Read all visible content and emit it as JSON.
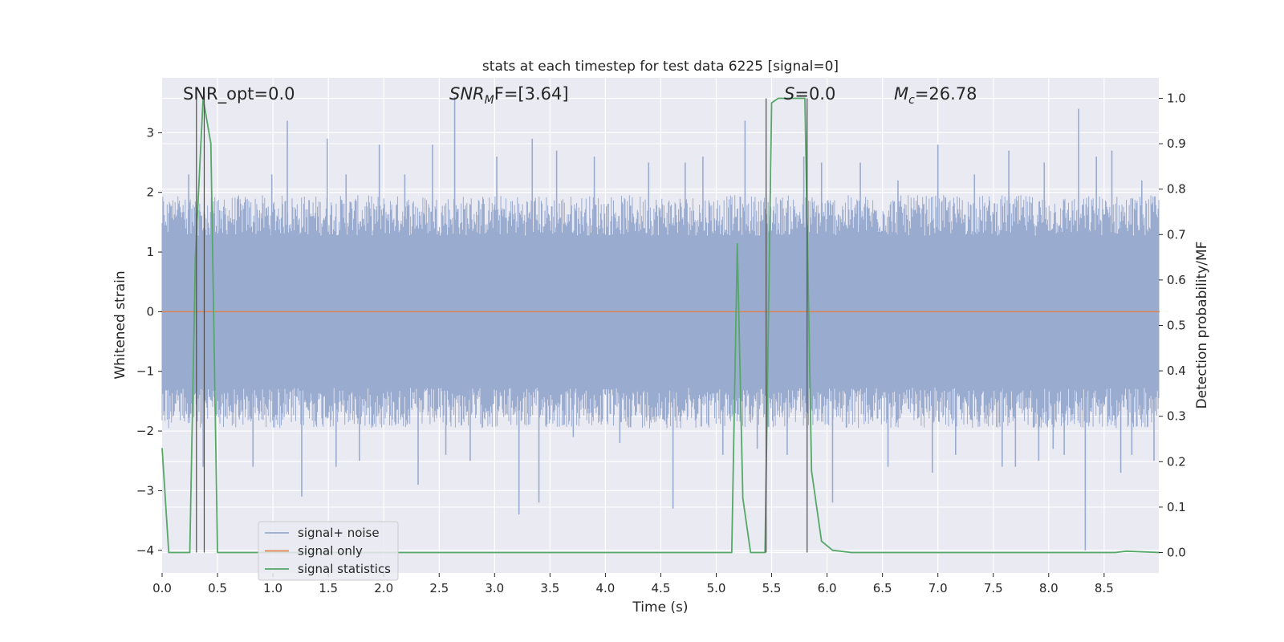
{
  "chart_data": {
    "type": "line",
    "title": "stats at each timestep for test data 6225 [signal=0]",
    "xlabel": "Time (s)",
    "ylabel_left": "Whitened strain",
    "ylabel_right": "Detection probability/MF",
    "xlim": [
      0.0,
      9.0
    ],
    "ylim_left": [
      -4.38,
      3.92
    ],
    "ylim_right": [
      -0.045,
      1.045
    ],
    "x_ticks": [
      0.0,
      0.5,
      1.0,
      1.5,
      2.0,
      2.5,
      3.0,
      3.5,
      4.0,
      4.5,
      5.0,
      5.5,
      6.0,
      6.5,
      7.0,
      7.5,
      8.0,
      8.5
    ],
    "x_tick_labels": [
      "0.0",
      "0.5",
      "1.0",
      "1.5",
      "2.0",
      "2.5",
      "3.0",
      "3.5",
      "4.0",
      "4.5",
      "5.0",
      "5.5",
      "6.0",
      "6.5",
      "7.0",
      "7.5",
      "8.0",
      "8.5"
    ],
    "y_left_ticks": [
      -4,
      -3,
      -2,
      -1,
      0,
      1,
      2,
      3
    ],
    "y_left_tick_labels": [
      "−4",
      "−3",
      "−2",
      "−1",
      "0",
      "1",
      "2",
      "3"
    ],
    "y_right_ticks": [
      0.0,
      0.1,
      0.2,
      0.3,
      0.4,
      0.5,
      0.6,
      0.7,
      0.8,
      0.9,
      1.0
    ],
    "y_right_tick_labels": [
      "0.0",
      "0.1",
      "0.2",
      "0.3",
      "0.4",
      "0.5",
      "0.6",
      "0.7",
      "0.8",
      "0.9",
      "1.0"
    ],
    "grid": true,
    "legend_position": "lower-left",
    "annotations": {
      "snr_opt": "SNR_opt=0.0",
      "snr_mf_main": "SNR",
      "snr_mf_sub": "M",
      "snr_mf_rest": "F=[3.64]",
      "s_main": "S",
      "s_rest": "=0.0",
      "mc_main": "M",
      "mc_sub": "c",
      "mc_rest": "=26.78"
    },
    "vertical_markers_x": [
      0.31,
      0.38,
      5.45,
      5.82
    ],
    "series": [
      {
        "name": "signal+ noise",
        "color": "#9aabd0",
        "axis": "left",
        "kind": "noise",
        "typical_range": [
          -1.7,
          1.7
        ],
        "peak_values": [
          [
            0.24,
            2.3
          ],
          [
            0.37,
            -2.6
          ],
          [
            0.52,
            1.7
          ],
          [
            0.82,
            -2.6
          ],
          [
            0.99,
            2.3
          ],
          [
            1.13,
            3.2
          ],
          [
            1.26,
            -3.1
          ],
          [
            1.49,
            2.9
          ],
          [
            1.57,
            -2.6
          ],
          [
            1.66,
            2.3
          ],
          [
            1.78,
            -2.5
          ],
          [
            1.96,
            2.8
          ],
          [
            2.19,
            2.3
          ],
          [
            2.31,
            -2.9
          ],
          [
            2.44,
            2.8
          ],
          [
            2.56,
            -2.4
          ],
          [
            2.64,
            3.6
          ],
          [
            2.78,
            -2.5
          ],
          [
            3.02,
            2.6
          ],
          [
            3.22,
            -3.4
          ],
          [
            3.34,
            2.9
          ],
          [
            3.4,
            -3.2
          ],
          [
            3.56,
            2.7
          ],
          [
            3.71,
            -2.1
          ],
          [
            3.9,
            2.6
          ],
          [
            4.13,
            -2.2
          ],
          [
            4.39,
            2.5
          ],
          [
            4.61,
            -3.3
          ],
          [
            4.72,
            2.5
          ],
          [
            4.88,
            2.6
          ],
          [
            5.06,
            -2.4
          ],
          [
            5.26,
            3.2
          ],
          [
            5.37,
            -2.3
          ],
          [
            5.64,
            -2.4
          ],
          [
            5.79,
            2.6
          ],
          [
            5.95,
            2.5
          ],
          [
            6.05,
            -3.2
          ],
          [
            6.3,
            2.5
          ],
          [
            6.55,
            -2.6
          ],
          [
            6.64,
            2.2
          ],
          [
            6.95,
            -2.7
          ],
          [
            7.0,
            2.8
          ],
          [
            7.16,
            -2.4
          ],
          [
            7.33,
            2.3
          ],
          [
            7.58,
            -2.6
          ],
          [
            7.64,
            2.7
          ],
          [
            7.7,
            -2.6
          ],
          [
            7.91,
            -2.5
          ],
          [
            7.96,
            2.5
          ],
          [
            8.04,
            -2.3
          ],
          [
            8.14,
            -2.4
          ],
          [
            8.23,
            -1.8
          ],
          [
            8.27,
            3.4
          ],
          [
            8.33,
            -4.0
          ],
          [
            8.43,
            2.6
          ],
          [
            8.57,
            2.7
          ],
          [
            8.65,
            -2.7
          ],
          [
            8.75,
            -2.4
          ],
          [
            8.84,
            2.2
          ],
          [
            8.95,
            -2.5
          ]
        ]
      },
      {
        "name": "signal only",
        "color": "#dd8452",
        "axis": "left",
        "x": [
          0.0,
          9.0
        ],
        "y": [
          0.0,
          0.0
        ]
      },
      {
        "name": "signal statistics",
        "color": "#55a868",
        "axis": "right",
        "x": [
          0.0,
          0.06,
          0.18,
          0.25,
          0.3,
          0.37,
          0.44,
          0.5,
          5.14,
          5.19,
          5.24,
          5.31,
          5.44,
          5.5,
          5.56,
          5.62,
          5.68,
          5.74,
          5.8,
          5.86,
          5.95,
          6.05,
          6.22,
          8.6,
          8.7,
          9.0
        ],
        "y": [
          0.23,
          0.0,
          0.0,
          0.0,
          0.65,
          1.0,
          0.9,
          0.0,
          0.0,
          0.68,
          0.12,
          0.0,
          0.0,
          0.99,
          1.0,
          1.0,
          1.0,
          1.0,
          1.0,
          0.18,
          0.025,
          0.005,
          0.0,
          0.0,
          0.003,
          0.0
        ]
      }
    ]
  }
}
